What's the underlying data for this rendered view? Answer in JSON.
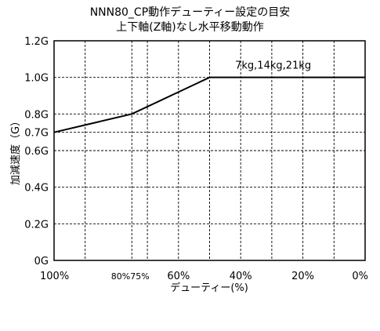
{
  "chart_data": {
    "type": "line",
    "title": "NNN80_CP動作デューティー設定の目安",
    "subtitle": "上下軸(Z軸)なし水平移動動作",
    "xlabel": "デューティー(%)",
    "ylabel": "加減速度（G）",
    "x_reversed": true,
    "xlim": [
      100,
      0
    ],
    "ylim": [
      0,
      1.2
    ],
    "grid": true,
    "x_ticks": [
      {
        "value": 100,
        "label": "100%"
      },
      {
        "value": 80,
        "label": "80%"
      },
      {
        "value": 75,
        "label": "75%"
      },
      {
        "value": 60,
        "label": "60%"
      },
      {
        "value": 40,
        "label": "40%"
      },
      {
        "value": 20,
        "label": "20%"
      },
      {
        "value": 0,
        "label": "0%"
      }
    ],
    "x_gridlines": [
      90,
      75,
      70,
      60,
      50,
      40,
      30,
      20,
      10
    ],
    "y_ticks": [
      {
        "value": 0,
        "label": "0G"
      },
      {
        "value": 0.2,
        "label": "0.2G"
      },
      {
        "value": 0.4,
        "label": "0.4G"
      },
      {
        "value": 0.6,
        "label": "0.6G"
      },
      {
        "value": 0.7,
        "label": "0.7G"
      },
      {
        "value": 0.8,
        "label": "0.8G"
      },
      {
        "value": 1.0,
        "label": "1.0G"
      },
      {
        "value": 1.2,
        "label": "1.2G"
      }
    ],
    "series": [
      {
        "name": "7kg,14kg,21kg",
        "x": [
          100,
          75,
          50,
          0
        ],
        "y": [
          0.7,
          0.8,
          1.0,
          1.0
        ]
      }
    ],
    "annotations": [
      {
        "text": "7kg,14kg,21kg",
        "x": 38,
        "y": 1.07
      }
    ]
  }
}
